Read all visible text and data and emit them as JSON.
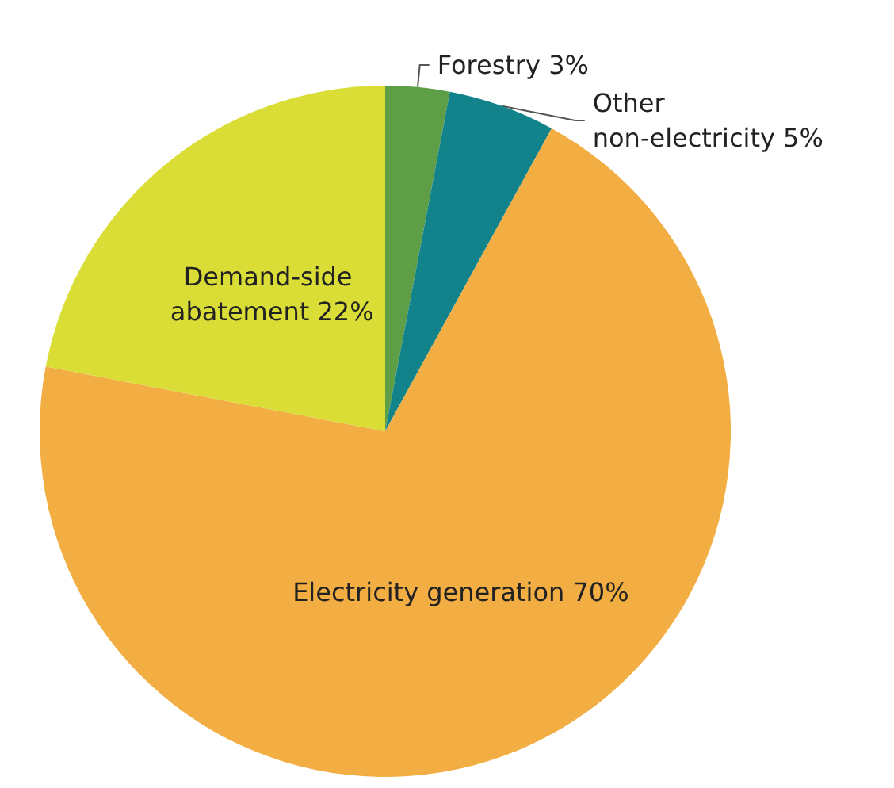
{
  "chart_data": {
    "type": "pie",
    "categories": [
      "Forestry",
      "Other non-electricity",
      "Electricity generation",
      "Demand-side abatement"
    ],
    "values": [
      3,
      5,
      70,
      22
    ],
    "value_labels": [
      "3%",
      "5%",
      "70%",
      "22%"
    ],
    "colors": [
      "#5e9e47",
      "#12838a",
      "#f2ae43",
      "#d9dd35"
    ],
    "legend": false
  }
}
